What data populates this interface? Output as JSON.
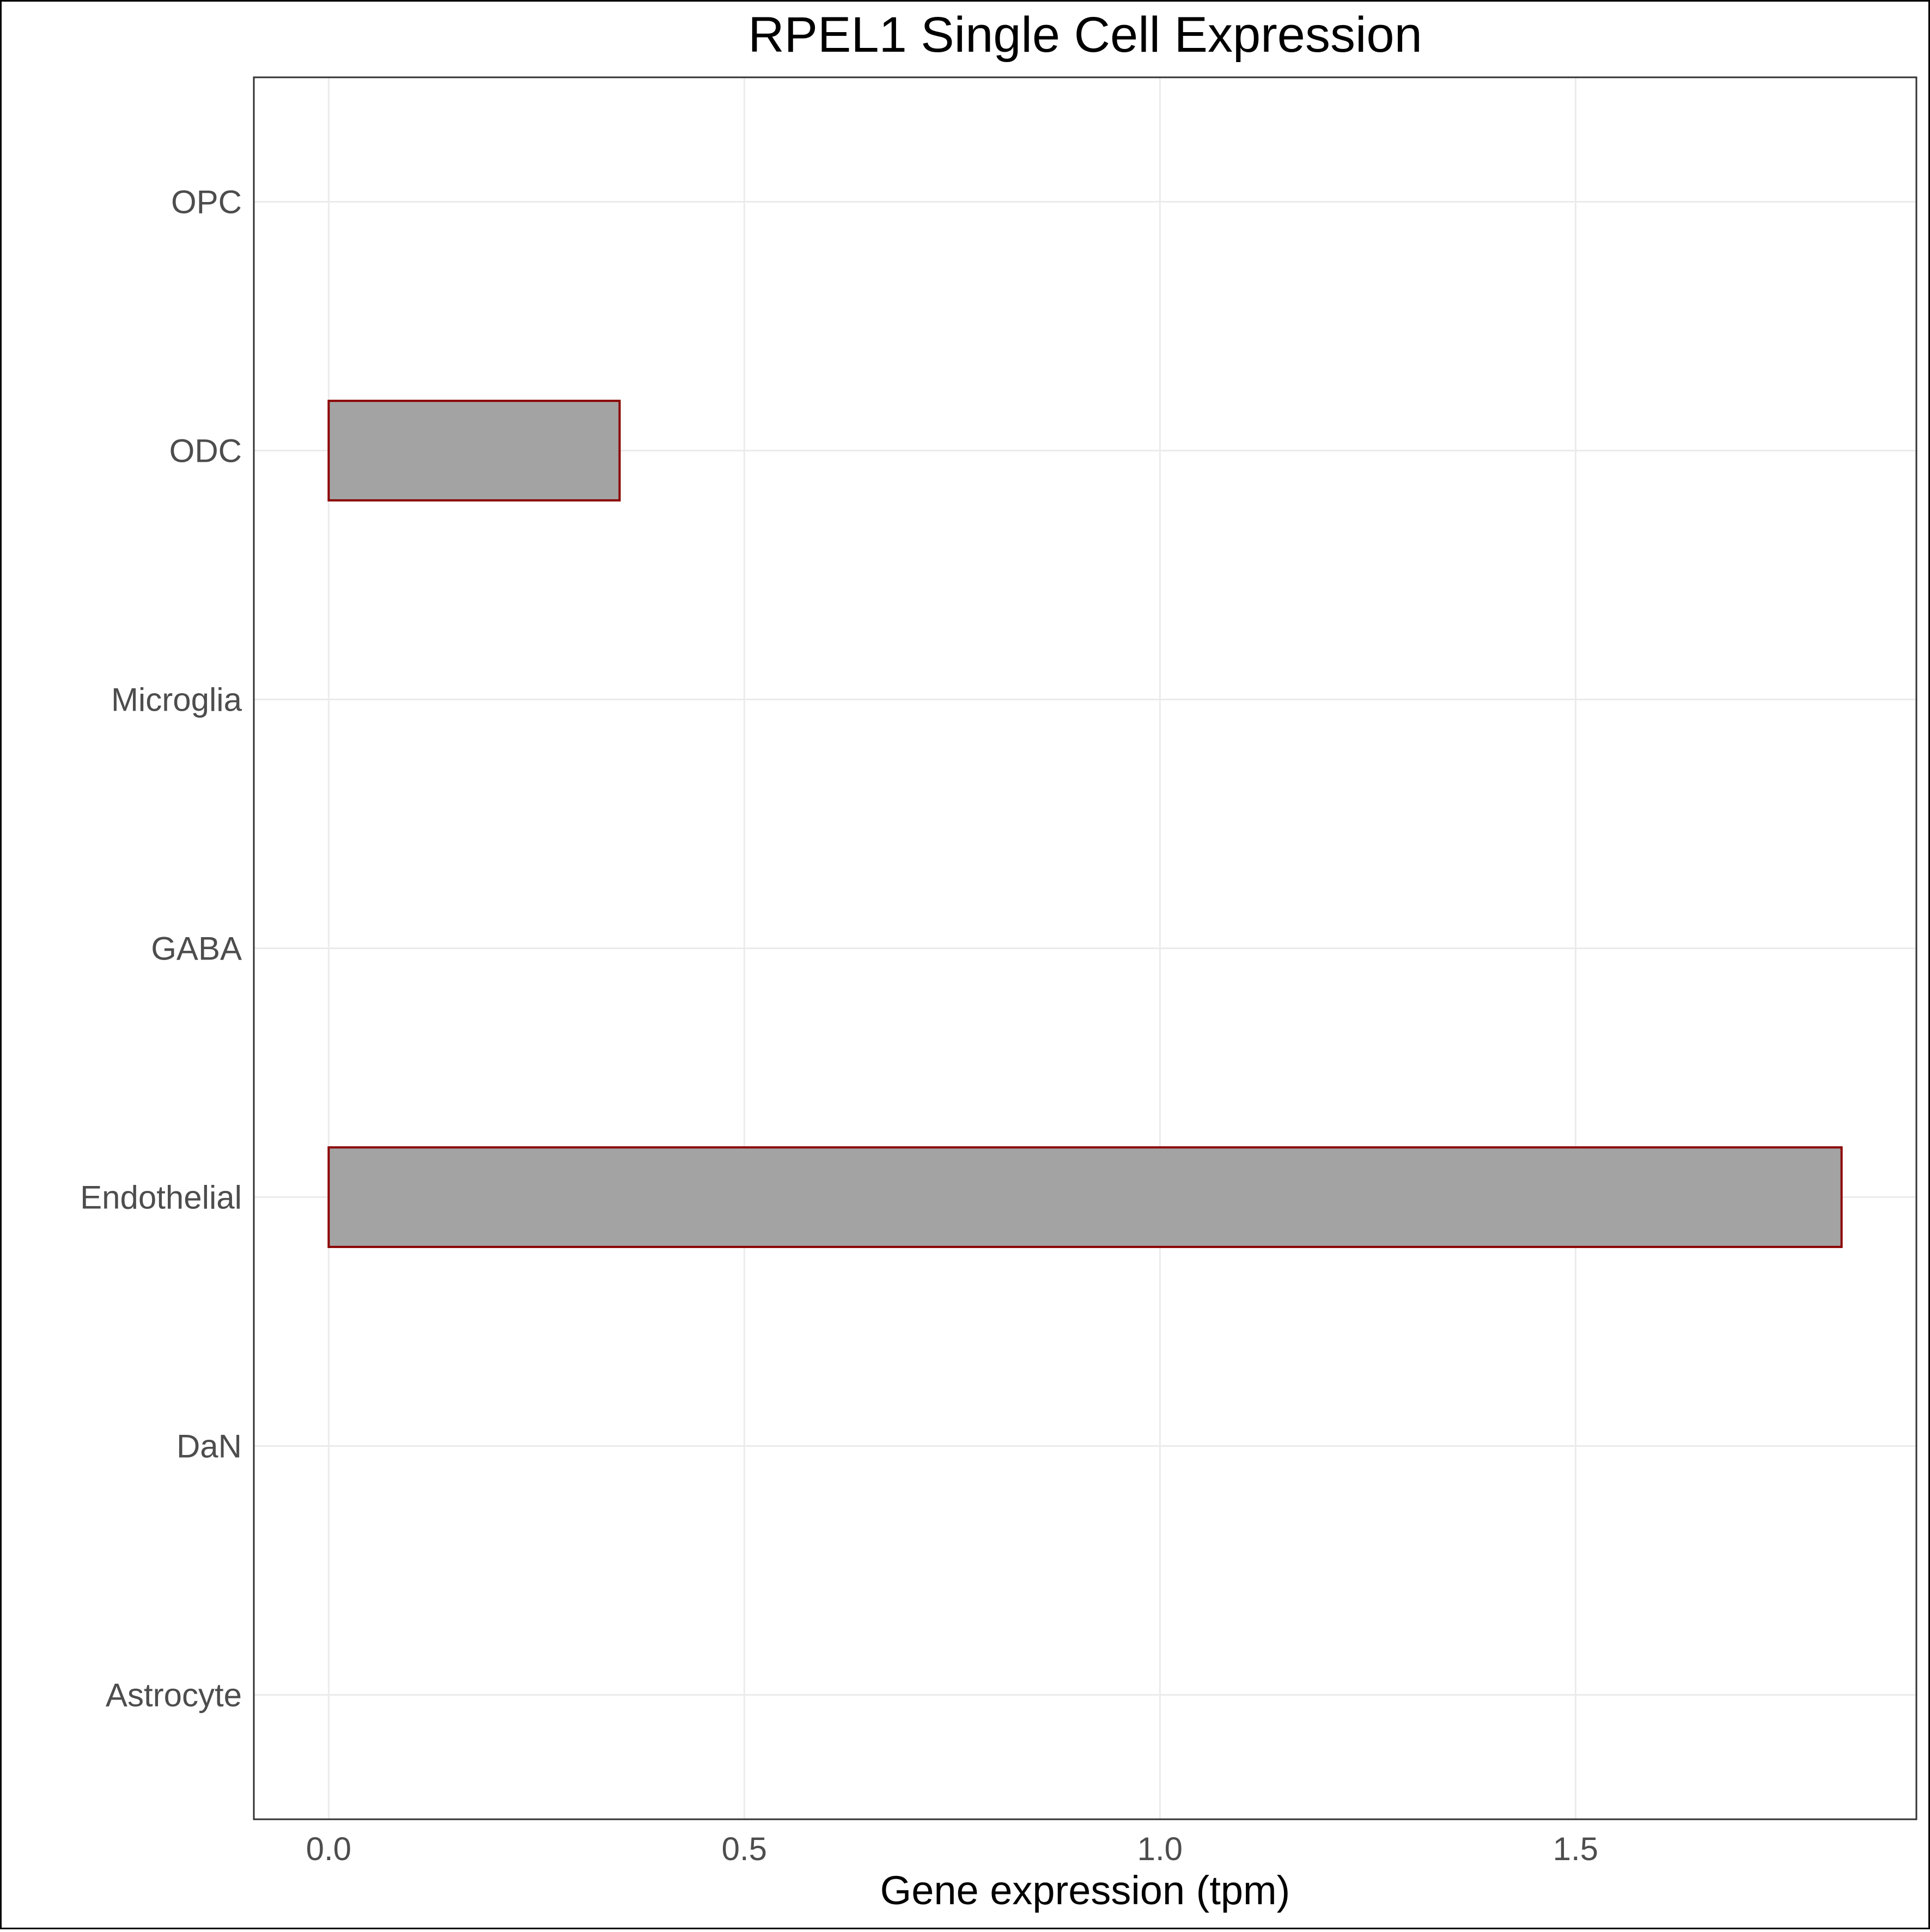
{
  "chart_data": {
    "type": "bar",
    "orientation": "horizontal",
    "title": "RPEL1 Single Cell Expression",
    "xlabel": "Gene expression (tpm)",
    "ylabel": "",
    "categories": [
      "Astrocyte",
      "DaN",
      "Endothelial",
      "GABA",
      "Microglia",
      "ODC",
      "OPC"
    ],
    "values": [
      0,
      0,
      1.82,
      0,
      0,
      0.35,
      0
    ],
    "xlim": [
      -0.09,
      1.91
    ],
    "xticks": [
      0.0,
      0.5,
      1.0,
      1.5
    ],
    "xtick_labels": [
      "0.0",
      "0.5",
      "1.0",
      "1.5"
    ],
    "grid": true,
    "legend": "none",
    "colors": {
      "bar_fill": "#a3a3a3",
      "bar_outline": "#8b0000",
      "grid": "#ebebeb",
      "panel_border": "#333333",
      "tick_text": "#4d4d4d"
    }
  }
}
